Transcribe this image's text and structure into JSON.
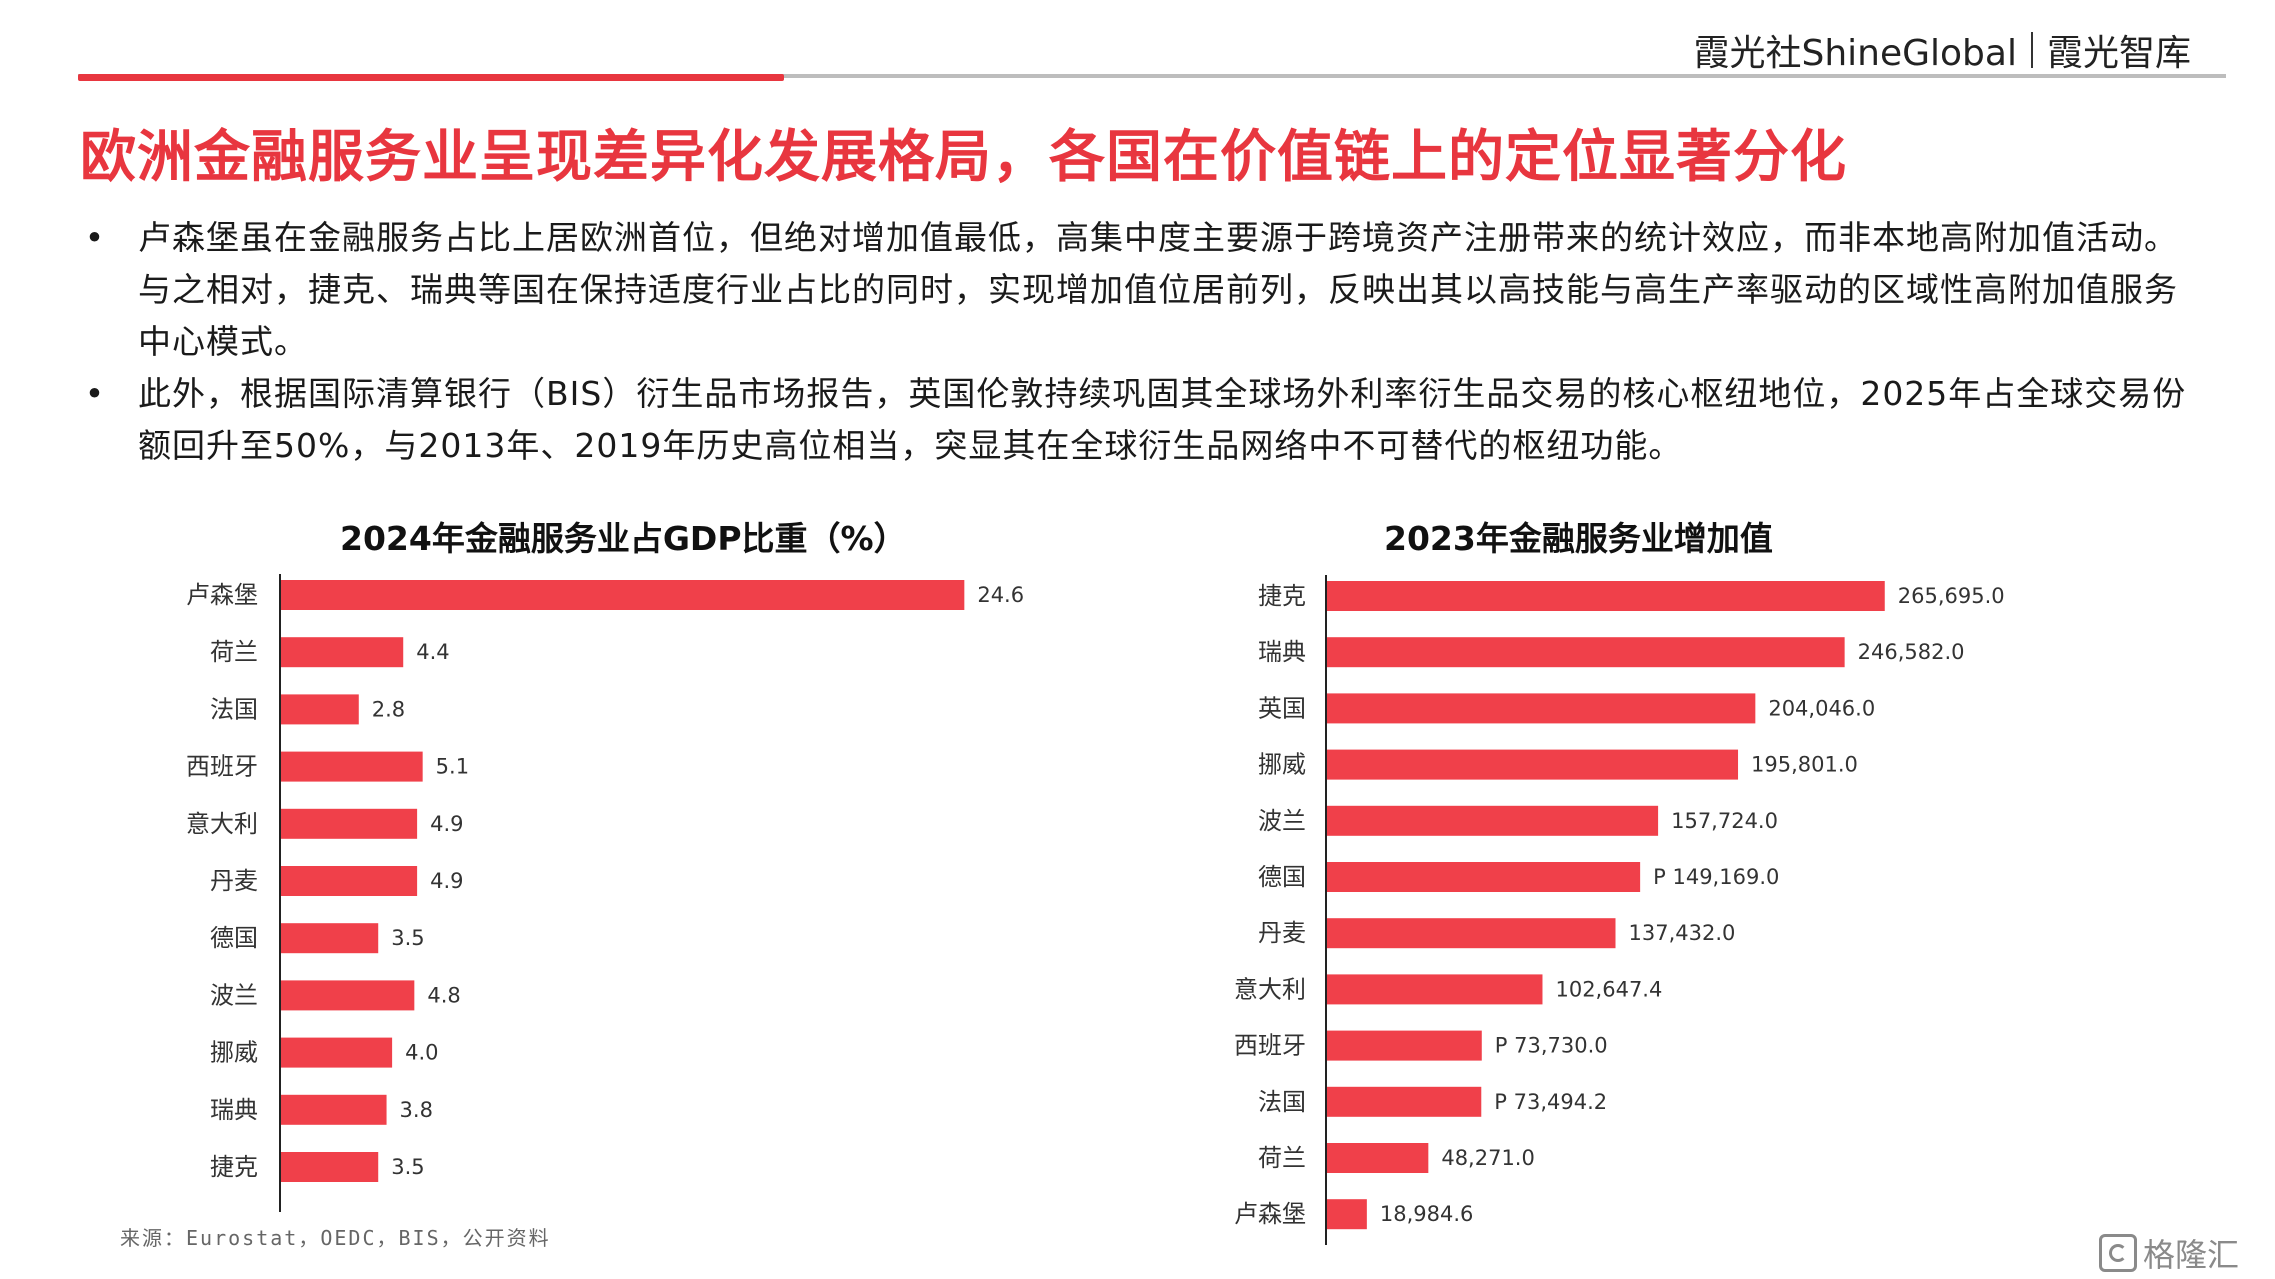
{
  "header": {
    "brand_primary": "霞光社ShineGlobal",
    "brand_secondary": "霞光智库",
    "accent_color": "#e8363f"
  },
  "title": "欧洲金融服务业呈现差异化发展格局，各国在价值链上的定位显著分化",
  "bullets": [
    "卢森堡虽在金融服务占比上居欧洲首位，但绝对增加值最低，高集中度主要源于跨境资产注册带来的统计效应，而非本地高附加值活动。与之相对，捷克、瑞典等国在保持适度行业占比的同时，实现增加值位居前列，反映出其以高技能与高生产率驱动的区域性高附加值服务中心模式。",
    "此外，根据国际清算银行（BIS）衍生品市场报告，英国伦敦持续巩固其全球场外利率衍生品交易的核心枢纽地位，2025年占全球交易份额回升至50%，与2013年、2019年历史高位相当，突显其在全球衍生品网络中不可替代的枢纽功能。"
  ],
  "chart_data": [
    {
      "type": "bar",
      "orientation": "horizontal",
      "title": "2024年金融服务业占GDP比重（%）",
      "categories": [
        "卢森堡",
        "荷兰",
        "法国",
        "西班牙",
        "意大利",
        "丹麦",
        "德国",
        "波兰",
        "挪威",
        "瑞典",
        "捷克"
      ],
      "values": [
        24.6,
        4.4,
        2.8,
        5.1,
        4.9,
        4.9,
        3.5,
        4.8,
        4.0,
        3.8,
        3.5
      ],
      "value_labels": [
        "24.6",
        "4.4",
        "2.8",
        "5.1",
        "4.9",
        "4.9",
        "3.5",
        "4.8",
        "4.0",
        "3.8",
        "3.5"
      ],
      "xlim": [
        0,
        36
      ],
      "bar_color": "#f0404a",
      "grid": false
    },
    {
      "type": "bar",
      "orientation": "horizontal",
      "title": "2023年金融服务业增加值",
      "categories": [
        "捷克",
        "瑞典",
        "英国",
        "挪威",
        "波兰",
        "德国",
        "丹麦",
        "意大利",
        "西班牙",
        "法国",
        "荷兰",
        "卢森堡"
      ],
      "values": [
        265695.0,
        246582.0,
        204046.0,
        195801.0,
        157724.0,
        149169.0,
        137432.0,
        102647.4,
        73730.0,
        73494.2,
        48271.0,
        18984.6
      ],
      "value_labels": [
        "265,695.0",
        "246,582.0",
        "204,046.0",
        "195,801.0",
        "157,724.0",
        "P  149,169.0",
        "137,432.0",
        "102,647.4",
        "P  73,730.0",
        "P  73,494.2",
        "48,271.0",
        "18,984.6"
      ],
      "xlim": [
        0,
        262000
      ],
      "bar_color": "#f0404a",
      "grid": false
    }
  ],
  "source": "来源：Eurostat，OEDC，BIS，公开资料",
  "watermark": "格隆汇"
}
